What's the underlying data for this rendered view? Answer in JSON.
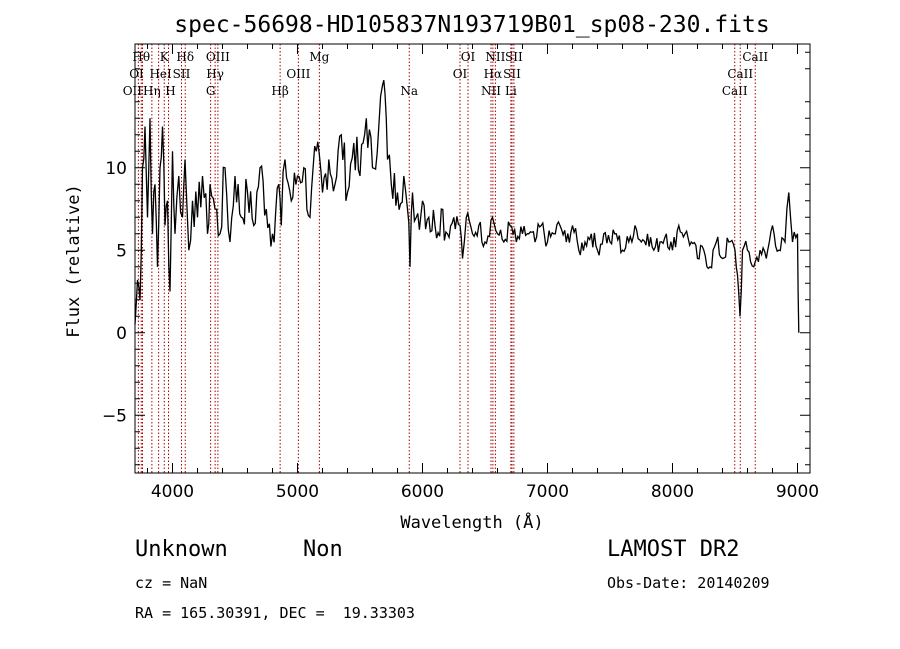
{
  "chart_data": {
    "type": "line",
    "title": "spec-56698-HD105837N193719B01_sp08-230.fits",
    "xlabel": "Wavelength (Å)",
    "ylabel": "Flux (relative)",
    "xlim": [
      3700,
      9100
    ],
    "ylim": [
      -8.5,
      17.5
    ],
    "xticks": [
      4000,
      5000,
      6000,
      7000,
      8000,
      9000
    ],
    "yticks": [
      -5,
      0,
      5,
      10
    ],
    "grid": false,
    "series": [
      {
        "x": [
          3700,
          3720,
          3740,
          3760,
          3780,
          3800,
          3820,
          3840,
          3860,
          3880,
          3900,
          3920,
          3940,
          3960,
          3980,
          4000,
          4020,
          4050,
          4080,
          4100,
          4130,
          4160,
          4200,
          4240,
          4280,
          4300,
          4340,
          4380,
          4420,
          4460,
          4500,
          4550,
          4600,
          4650,
          4700,
          4750,
          4800,
          4850,
          4870,
          4900,
          4950,
          5000,
          5050,
          5100,
          5150,
          5200,
          5250,
          5300,
          5350,
          5400,
          5450,
          5500,
          5550,
          5600,
          5650,
          5680,
          5700,
          5720,
          5750,
          5800,
          5850,
          5880,
          5900,
          5920,
          5950,
          6000,
          6050,
          6100,
          6150,
          6200,
          6250,
          6300,
          6320,
          6350,
          6400,
          6450,
          6500,
          6560,
          6600,
          6650,
          6700,
          6750,
          6800,
          6850,
          6900,
          6950,
          7000,
          7050,
          7100,
          7150,
          7200,
          7250,
          7300,
          7350,
          7400,
          7450,
          7500,
          7550,
          7600,
          7650,
          7700,
          7750,
          7800,
          7850,
          7900,
          7950,
          8000,
          8050,
          8100,
          8150,
          8200,
          8250,
          8300,
          8350,
          8400,
          8450,
          8500,
          8520,
          8540,
          8560,
          8600,
          8650,
          8700,
          8750,
          8800,
          8850,
          8900,
          8930,
          8960,
          9000,
          9010
        ],
        "values": [
          0.5,
          3.2,
          2.0,
          10.0,
          12.5,
          7.0,
          13.0,
          6.0,
          9.0,
          4.0,
          10.0,
          12.5,
          6.5,
          8.0,
          2.5,
          11.0,
          6.0,
          9.5,
          7.0,
          10.5,
          5.0,
          8.0,
          7.0,
          9.5,
          6.0,
          9.0,
          7.5,
          6.0,
          10.0,
          5.5,
          9.5,
          7.0,
          8.5,
          6.5,
          10.0,
          7.5,
          6.0,
          9.0,
          6.5,
          10.5,
          8.0,
          9.5,
          10.0,
          7.0,
          11.0,
          8.5,
          10.5,
          9.0,
          12.0,
          8.5,
          11.5,
          9.5,
          13.0,
          10.0,
          12.5,
          15.0,
          14.5,
          10.5,
          9.0,
          8.5,
          9.5,
          7.5,
          4.0,
          8.5,
          7.0,
          8.0,
          7.0,
          6.5,
          7.5,
          6.0,
          7.0,
          6.5,
          4.5,
          7.0,
          6.0,
          6.5,
          5.5,
          7.0,
          6.0,
          5.5,
          6.5,
          5.5,
          6.0,
          6.0,
          5.5,
          6.5,
          5.5,
          6.0,
          6.5,
          5.5,
          6.5,
          5.0,
          5.5,
          6.0,
          5.0,
          6.0,
          5.5,
          6.0,
          5.0,
          5.5,
          6.5,
          5.5,
          6.0,
          5.0,
          5.5,
          6.0,
          5.0,
          6.5,
          6.0,
          5.5,
          4.5,
          5.0,
          4.0,
          5.5,
          4.5,
          5.5,
          5.0,
          3.5,
          1.0,
          5.0,
          5.0,
          4.0,
          5.0,
          4.5,
          6.5,
          5.0,
          5.5,
          8.5,
          5.5,
          6.0,
          0.0
        ]
      }
    ],
    "lines": [
      {
        "name": "OII",
        "x": 3727,
        "row": 3,
        "dx": -6
      },
      {
        "name": "Hθ",
        "x": 3750,
        "row": 1,
        "dx": 0
      },
      {
        "name": "OI",
        "x": 3760,
        "row": 2,
        "dx": -6
      },
      {
        "name": "Hη",
        "x": 3835,
        "row": 3,
        "dx": 0
      },
      {
        "name": "K",
        "x": 3934,
        "row": 1,
        "dx": 0
      },
      {
        "name": "HeI",
        "x": 3889,
        "row": 2,
        "dx": 2
      },
      {
        "name": "H",
        "x": 3968,
        "row": 3,
        "dx": 2
      },
      {
        "name": "SII",
        "x": 4072,
        "row": 2,
        "dx": 0
      },
      {
        "name": "Hδ",
        "x": 4102,
        "row": 1,
        "dx": 0
      },
      {
        "name": "G",
        "x": 4305,
        "row": 3,
        "dx": 0
      },
      {
        "name": "Hγ",
        "x": 4341,
        "row": 2,
        "dx": 0
      },
      {
        "name": "OIII",
        "x": 4363,
        "row": 1,
        "dx": 0
      },
      {
        "name": "Hβ",
        "x": 4861,
        "row": 3,
        "dx": 0
      },
      {
        "name": "OIII",
        "x": 5007,
        "row": 2,
        "dx": 0
      },
      {
        "name": "Mg",
        "x": 5175,
        "row": 1,
        "dx": 0
      },
      {
        "name": "Na",
        "x": 5894,
        "row": 3,
        "dx": 0
      },
      {
        "name": "OI",
        "x": 6300,
        "row": 2,
        "dx": 0
      },
      {
        "name": "OI",
        "x": 6364,
        "row": 1,
        "dx": 0
      },
      {
        "name": "NII",
        "x": 6548,
        "row": 3,
        "dx": 0
      },
      {
        "name": "Hα",
        "x": 6563,
        "row": 2,
        "dx": 0
      },
      {
        "name": "NII",
        "x": 6583,
        "row": 1,
        "dx": 0
      },
      {
        "name": "Li",
        "x": 6707,
        "row": 3,
        "dx": 0
      },
      {
        "name": "SII",
        "x": 6716,
        "row": 2,
        "dx": 0
      },
      {
        "name": "SII",
        "x": 6731,
        "row": 1,
        "dx": 0
      },
      {
        "name": "CaII",
        "x": 8498,
        "row": 3,
        "dx": 0
      },
      {
        "name": "CaII",
        "x": 8542,
        "row": 2,
        "dx": 0
      },
      {
        "name": "CaII",
        "x": 8662,
        "row": 1,
        "dx": 0
      }
    ],
    "line_color": "#aa0000"
  },
  "info": {
    "object_class": "Unknown",
    "subclass": "Non",
    "survey": "LAMOST DR2",
    "cz": "cz = NaN",
    "obs_date": "Obs-Date: 20140209",
    "coords": "RA = 165.30391, DEC =  19.33303"
  }
}
